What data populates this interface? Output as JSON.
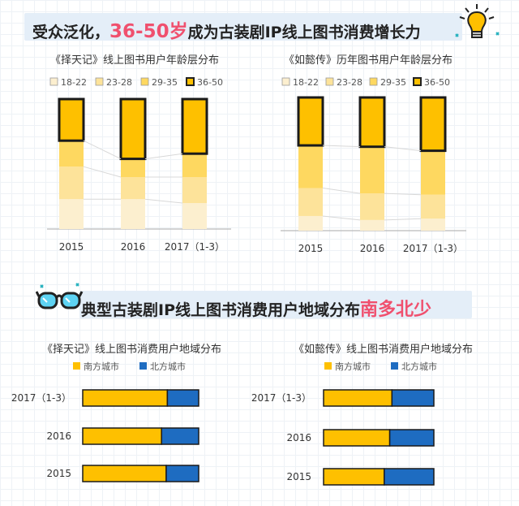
{
  "section1": {
    "title_before": "受众泛化，",
    "title_highlight": "36-50岁",
    "title_after": "成为古装剧IP线上图书消费增长力"
  },
  "section2": {
    "title_before": "典型古装剧IP线上图书消费用户地域分布",
    "title_highlight": "南多北少"
  },
  "colors": {
    "age_18_22": "#fcefcf",
    "age_23_28": "#fde39a",
    "age_29_35": "#fed860",
    "age_36_50": "#fec000",
    "south": "#fec000",
    "north": "#1e6cc1",
    "highlight": "#f0506e"
  },
  "chart_data": [
    {
      "type": "bar",
      "stacked": true,
      "normalized": true,
      "title": "《择天记》线上图书用户年龄层分布",
      "categories": [
        "2015",
        "2016",
        "2017（1-3）"
      ],
      "legend": [
        "18-22",
        "23-28",
        "29-35",
        "36-50"
      ],
      "series": [
        {
          "name": "18-22",
          "values": [
            0.23,
            0.23,
            0.2
          ]
        },
        {
          "name": "23-28",
          "values": [
            0.25,
            0.17,
            0.2
          ]
        },
        {
          "name": "29-35",
          "values": [
            0.2,
            0.14,
            0.18
          ]
        },
        {
          "name": "36-50",
          "values": [
            0.32,
            0.46,
            0.42
          ]
        }
      ]
    },
    {
      "type": "bar",
      "stacked": true,
      "normalized": true,
      "title": "《如懿传》历年图书用户年龄层分布",
      "categories": [
        "2015",
        "2016",
        "2017（1-3）"
      ],
      "legend": [
        "18-22",
        "23-28",
        "29-35",
        "36-50"
      ],
      "series": [
        {
          "name": "18-22",
          "values": [
            0.11,
            0.08,
            0.09
          ]
        },
        {
          "name": "23-28",
          "values": [
            0.21,
            0.2,
            0.18
          ]
        },
        {
          "name": "29-35",
          "values": [
            0.32,
            0.35,
            0.33
          ]
        },
        {
          "name": "36-50",
          "values": [
            0.36,
            0.37,
            0.4
          ]
        }
      ]
    },
    {
      "type": "bar",
      "orientation": "horizontal",
      "stacked": true,
      "normalized": true,
      "title": "《择天记》线上图书消费用户地域分布",
      "categories": [
        "2017（1-3）",
        "2016",
        "2015"
      ],
      "legend": [
        "南方城市",
        "北方城市"
      ],
      "series": [
        {
          "name": "南方城市",
          "values": [
            0.73,
            0.68,
            0.72
          ]
        },
        {
          "name": "北方城市",
          "values": [
            0.27,
            0.32,
            0.28
          ]
        }
      ]
    },
    {
      "type": "bar",
      "orientation": "horizontal",
      "stacked": true,
      "normalized": true,
      "title": "《如懿传》线上图书消费用户地域分布",
      "categories": [
        "2017（1-3）",
        "2016",
        "2015"
      ],
      "legend": [
        "南方城市",
        "北方城市"
      ],
      "series": [
        {
          "name": "南方城市",
          "values": [
            0.62,
            0.6,
            0.55
          ]
        },
        {
          "name": "北方城市",
          "values": [
            0.38,
            0.4,
            0.45
          ]
        }
      ]
    }
  ]
}
